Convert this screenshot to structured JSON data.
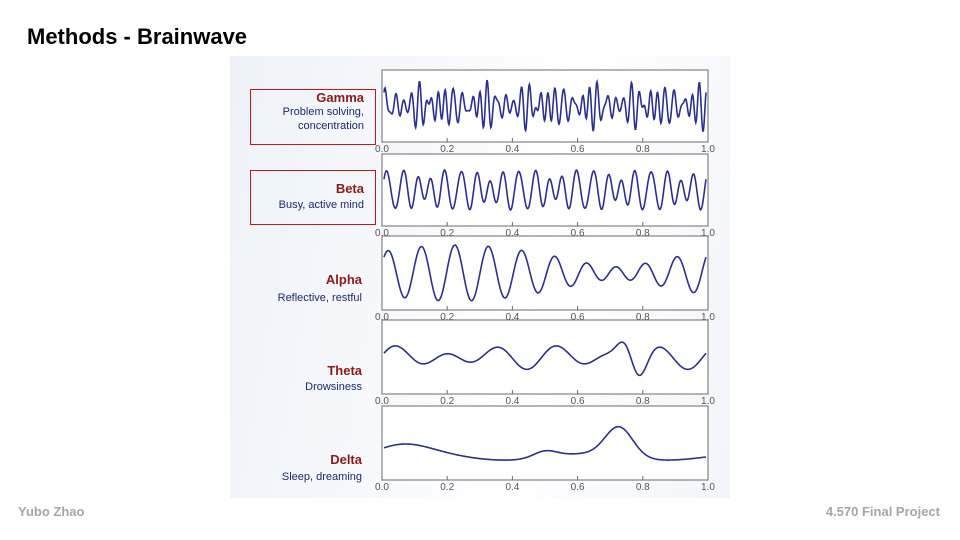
{
  "slide": {
    "title": "Methods - Brainwave",
    "author": "Yubo Zhao",
    "project": "4.570 Final Project"
  },
  "waves": [
    {
      "name": "Gamma",
      "desc_lines": [
        "Problem solving,",
        "concentration"
      ],
      "highlighted": true
    },
    {
      "name": "Beta",
      "desc_lines": [
        "Busy, active mind"
      ],
      "highlighted": true
    },
    {
      "name": "Alpha",
      "desc_lines": [
        "Reflective, restful"
      ],
      "highlighted": false
    },
    {
      "name": "Theta",
      "desc_lines": [
        "Drowsiness"
      ],
      "highlighted": false
    },
    {
      "name": "Delta",
      "desc_lines": [
        "Sleep, dreaming"
      ],
      "highlighted": false
    }
  ],
  "axis_ticks": [
    "0.0",
    "0.2",
    "0.4",
    "0.6",
    "0.8",
    "1.0"
  ],
  "colors": {
    "wave_line": "#2b2f8f",
    "label_red": "#8b1a1a",
    "desc_blue": "#1f2a66",
    "highlight_box": "#c0171b",
    "footer_gray": "#a6a6a6"
  }
}
